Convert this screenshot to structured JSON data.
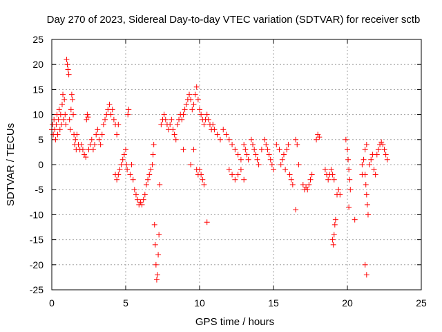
{
  "chart_data": {
    "type": "scatter",
    "title": "Day 270 of 2023, Sidereal Day-to-day VTEC variation (SDTVAR) for receiver sctb",
    "xlabel": "GPS time / hours",
    "ylabel": "SDTVAR / TECUs",
    "xlim": [
      0,
      25
    ],
    "ylim": [
      -25,
      25
    ],
    "xticks": [
      0,
      5,
      10,
      15,
      20,
      25
    ],
    "yticks": [
      -25,
      -20,
      -15,
      -10,
      -5,
      0,
      5,
      10,
      15,
      20,
      25
    ],
    "grid": true,
    "marker": "+",
    "marker_color": "#ff0000",
    "series": [
      {
        "name": "SDTVAR",
        "points": [
          [
            0.0,
            7
          ],
          [
            0.05,
            8
          ],
          [
            0.1,
            6
          ],
          [
            0.15,
            9
          ],
          [
            0.2,
            7
          ],
          [
            0.25,
            5
          ],
          [
            0.3,
            8
          ],
          [
            0.35,
            10
          ],
          [
            0.4,
            6
          ],
          [
            0.45,
            9
          ],
          [
            0.5,
            11
          ],
          [
            0.55,
            7
          ],
          [
            0.6,
            10
          ],
          [
            0.65,
            8
          ],
          [
            0.7,
            12
          ],
          [
            0.75,
            14
          ],
          [
            0.8,
            9
          ],
          [
            0.85,
            13
          ],
          [
            0.9,
            10
          ],
          [
            0.95,
            8
          ],
          [
            1.0,
            21
          ],
          [
            1.05,
            20
          ],
          [
            1.1,
            19
          ],
          [
            1.15,
            18
          ],
          [
            1.2,
            9
          ],
          [
            1.25,
            7
          ],
          [
            1.3,
            11
          ],
          [
            1.35,
            14
          ],
          [
            1.4,
            13
          ],
          [
            1.45,
            10
          ],
          [
            1.5,
            6
          ],
          [
            1.55,
            4
          ],
          [
            1.6,
            5
          ],
          [
            1.65,
            3
          ],
          [
            1.7,
            6
          ],
          [
            1.8,
            4
          ],
          [
            1.9,
            3
          ],
          [
            2.0,
            4
          ],
          [
            2.1,
            3
          ],
          [
            2.2,
            2
          ],
          [
            2.3,
            1.5
          ],
          [
            2.35,
            9
          ],
          [
            2.4,
            10
          ],
          [
            2.45,
            9.5
          ],
          [
            2.5,
            3
          ],
          [
            2.6,
            4
          ],
          [
            2.7,
            5
          ],
          [
            2.8,
            3
          ],
          [
            2.9,
            4
          ],
          [
            3.0,
            6
          ],
          [
            3.1,
            7
          ],
          [
            3.2,
            5
          ],
          [
            3.3,
            4
          ],
          [
            3.4,
            6
          ],
          [
            3.5,
            8
          ],
          [
            3.6,
            9
          ],
          [
            3.7,
            10
          ],
          [
            3.8,
            11
          ],
          [
            3.9,
            12
          ],
          [
            4.0,
            10
          ],
          [
            4.1,
            11
          ],
          [
            4.2,
            9
          ],
          [
            4.3,
            8
          ],
          [
            4.4,
            6
          ],
          [
            4.5,
            8
          ],
          [
            4.3,
            -2
          ],
          [
            4.4,
            -3
          ],
          [
            4.5,
            -2
          ],
          [
            4.6,
            -1
          ],
          [
            4.7,
            0
          ],
          [
            4.8,
            1
          ],
          [
            4.9,
            2
          ],
          [
            5.0,
            3
          ],
          [
            5.05,
            0
          ],
          [
            5.1,
            -1
          ],
          [
            5.15,
            10
          ],
          [
            5.2,
            11
          ],
          [
            5.3,
            -2
          ],
          [
            5.4,
            0
          ],
          [
            5.5,
            -3
          ],
          [
            5.6,
            -5
          ],
          [
            5.7,
            -6
          ],
          [
            5.8,
            -7
          ],
          [
            5.9,
            -8
          ],
          [
            6.0,
            -7.5
          ],
          [
            6.1,
            -8
          ],
          [
            6.2,
            -7
          ],
          [
            6.3,
            -6
          ],
          [
            6.4,
            -4
          ],
          [
            6.5,
            -3
          ],
          [
            6.6,
            -2
          ],
          [
            6.7,
            -1
          ],
          [
            6.8,
            0
          ],
          [
            6.85,
            2
          ],
          [
            6.9,
            4
          ],
          [
            6.95,
            -12
          ],
          [
            7.0,
            -16
          ],
          [
            7.05,
            -20
          ],
          [
            7.1,
            -23
          ],
          [
            7.15,
            -22
          ],
          [
            7.2,
            -18
          ],
          [
            7.25,
            -14
          ],
          [
            7.3,
            -4
          ],
          [
            7.4,
            8
          ],
          [
            7.5,
            9
          ],
          [
            7.6,
            10
          ],
          [
            7.7,
            9
          ],
          [
            7.8,
            8
          ],
          [
            7.9,
            7
          ],
          [
            8.0,
            8
          ],
          [
            8.1,
            9
          ],
          [
            8.2,
            7
          ],
          [
            8.3,
            6
          ],
          [
            8.4,
            5
          ],
          [
            8.5,
            8
          ],
          [
            8.6,
            9
          ],
          [
            8.7,
            10
          ],
          [
            8.8,
            9
          ],
          [
            8.9,
            10
          ],
          [
            9.0,
            11
          ],
          [
            9.1,
            12
          ],
          [
            9.2,
            13
          ],
          [
            9.3,
            14
          ],
          [
            9.4,
            13
          ],
          [
            9.5,
            11
          ],
          [
            9.6,
            12
          ],
          [
            9.7,
            14
          ],
          [
            9.8,
            15.5
          ],
          [
            9.9,
            13
          ],
          [
            10.0,
            11
          ],
          [
            10.1,
            10
          ],
          [
            10.2,
            9
          ],
          [
            10.3,
            8
          ],
          [
            10.4,
            9
          ],
          [
            10.5,
            10
          ],
          [
            10.6,
            9
          ],
          [
            10.7,
            8
          ],
          [
            10.8,
            7
          ],
          [
            10.9,
            8
          ],
          [
            10.0,
            -1
          ],
          [
            10.1,
            -2
          ],
          [
            10.2,
            -3
          ],
          [
            10.3,
            -4
          ],
          [
            10.5,
            -11.5
          ],
          [
            8.9,
            3
          ],
          [
            9.4,
            0
          ],
          [
            9.6,
            3
          ],
          [
            9.8,
            -1
          ],
          [
            9.9,
            -2
          ],
          [
            11.0,
            7
          ],
          [
            11.2,
            6
          ],
          [
            11.4,
            5
          ],
          [
            11.6,
            7
          ],
          [
            11.8,
            6
          ],
          [
            12.0,
            5
          ],
          [
            12.2,
            4
          ],
          [
            12.4,
            3
          ],
          [
            12.6,
            2
          ],
          [
            12.8,
            1
          ],
          [
            12.0,
            -1
          ],
          [
            12.2,
            -2
          ],
          [
            12.4,
            -3
          ],
          [
            12.6,
            -2
          ],
          [
            12.8,
            -1
          ],
          [
            13.0,
            -3
          ],
          [
            13.0,
            4
          ],
          [
            13.1,
            3
          ],
          [
            13.2,
            2
          ],
          [
            13.3,
            1
          ],
          [
            13.5,
            5
          ],
          [
            13.6,
            4
          ],
          [
            13.7,
            3
          ],
          [
            13.8,
            2
          ],
          [
            13.9,
            1
          ],
          [
            14.0,
            0
          ],
          [
            14.2,
            3
          ],
          [
            14.4,
            5
          ],
          [
            14.5,
            4
          ],
          [
            14.6,
            3
          ],
          [
            14.7,
            2
          ],
          [
            14.8,
            1
          ],
          [
            14.9,
            0
          ],
          [
            15.0,
            -1
          ],
          [
            15.2,
            4
          ],
          [
            15.4,
            3
          ],
          [
            15.5,
            0
          ],
          [
            15.6,
            1
          ],
          [
            15.7,
            2
          ],
          [
            15.8,
            -1
          ],
          [
            15.9,
            3
          ],
          [
            16.0,
            4
          ],
          [
            16.1,
            -2
          ],
          [
            16.2,
            -3
          ],
          [
            16.3,
            -4
          ],
          [
            16.5,
            5
          ],
          [
            16.6,
            4
          ],
          [
            16.7,
            0
          ],
          [
            16.5,
            -9
          ],
          [
            17.0,
            -4
          ],
          [
            17.1,
            -5
          ],
          [
            17.2,
            -4.5
          ],
          [
            17.3,
            -5
          ],
          [
            17.4,
            -4
          ],
          [
            17.5,
            -3
          ],
          [
            17.6,
            -2
          ],
          [
            17.9,
            5
          ],
          [
            18.0,
            6
          ],
          [
            18.1,
            5.5
          ],
          [
            18.5,
            -1
          ],
          [
            18.6,
            -2
          ],
          [
            18.7,
            -3
          ],
          [
            18.8,
            -2
          ],
          [
            18.9,
            -1
          ],
          [
            19.0,
            -2
          ],
          [
            19.1,
            -3
          ],
          [
            19.0,
            -15
          ],
          [
            19.05,
            -16
          ],
          [
            19.1,
            -14
          ],
          [
            19.15,
            -12
          ],
          [
            19.2,
            -11
          ],
          [
            19.3,
            -6
          ],
          [
            19.4,
            -5
          ],
          [
            19.5,
            -6
          ],
          [
            19.9,
            5
          ],
          [
            20.0,
            3
          ],
          [
            20.05,
            1
          ],
          [
            20.1,
            -1
          ],
          [
            20.15,
            -3
          ],
          [
            20.2,
            -5
          ],
          [
            20.1,
            -8.5
          ],
          [
            20.5,
            -11
          ],
          [
            21.0,
            -2
          ],
          [
            21.1,
            1
          ],
          [
            21.2,
            3
          ],
          [
            21.3,
            4
          ],
          [
            21.0,
            0
          ],
          [
            21.2,
            -2
          ],
          [
            21.25,
            -4
          ],
          [
            21.3,
            -6
          ],
          [
            21.35,
            -8
          ],
          [
            21.4,
            -10
          ],
          [
            21.2,
            -20
          ],
          [
            21.3,
            -22
          ],
          [
            21.5,
            0
          ],
          [
            21.6,
            1
          ],
          [
            21.7,
            2
          ],
          [
            21.8,
            -1
          ],
          [
            21.9,
            -2
          ],
          [
            22.0,
            2
          ],
          [
            22.1,
            3
          ],
          [
            22.2,
            4
          ],
          [
            22.3,
            4.5
          ],
          [
            22.4,
            4
          ],
          [
            22.5,
            3
          ],
          [
            22.6,
            2
          ],
          [
            22.7,
            1
          ]
        ]
      }
    ]
  }
}
